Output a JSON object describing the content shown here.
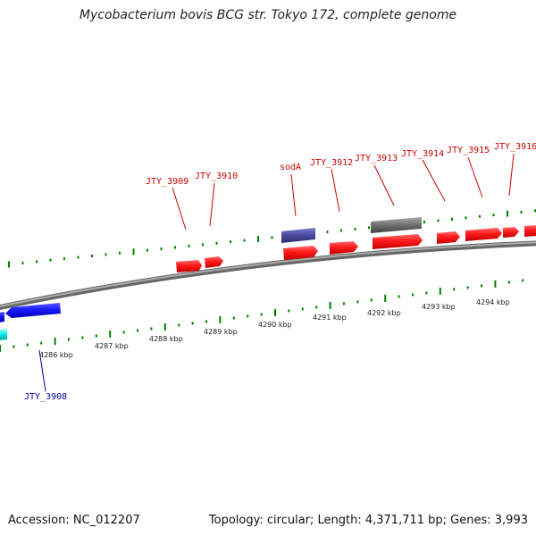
{
  "title": "Mycobacterium bovis BCG str. Tokyo 172, complete genome",
  "footer": {
    "accession": "Accession: NC_012207",
    "summary": "Topology: circular; Length: 4,371,711 bp; Genes: 3,993"
  },
  "colors": {
    "forward_gene": "#ff1a1a",
    "reverse_gene": "#1a1aff",
    "rna": "#4a4aa0",
    "pseudo": "#707070",
    "cyan_feature": "#00e6e6",
    "tick": "#008000",
    "forward_label": "#cc0000",
    "reverse_label": "#0000aa",
    "backbone": "#888888"
  },
  "scale_labels": [
    "4286 kbp",
    "4287 kbp",
    "4288 kbp",
    "4289 kbp",
    "4290 kbp",
    "4291 kbp",
    "4292 kbp",
    "4293 kbp",
    "4294 kbp"
  ],
  "gene_labels_forward": [
    "JTY_3909",
    "JTY_3910",
    "sodA",
    "JTY_3912",
    "JTY_3913",
    "JTY_3914",
    "JTY_3915",
    "JTY_3916"
  ],
  "gene_labels_reverse": [
    "JTY_3908"
  ]
}
